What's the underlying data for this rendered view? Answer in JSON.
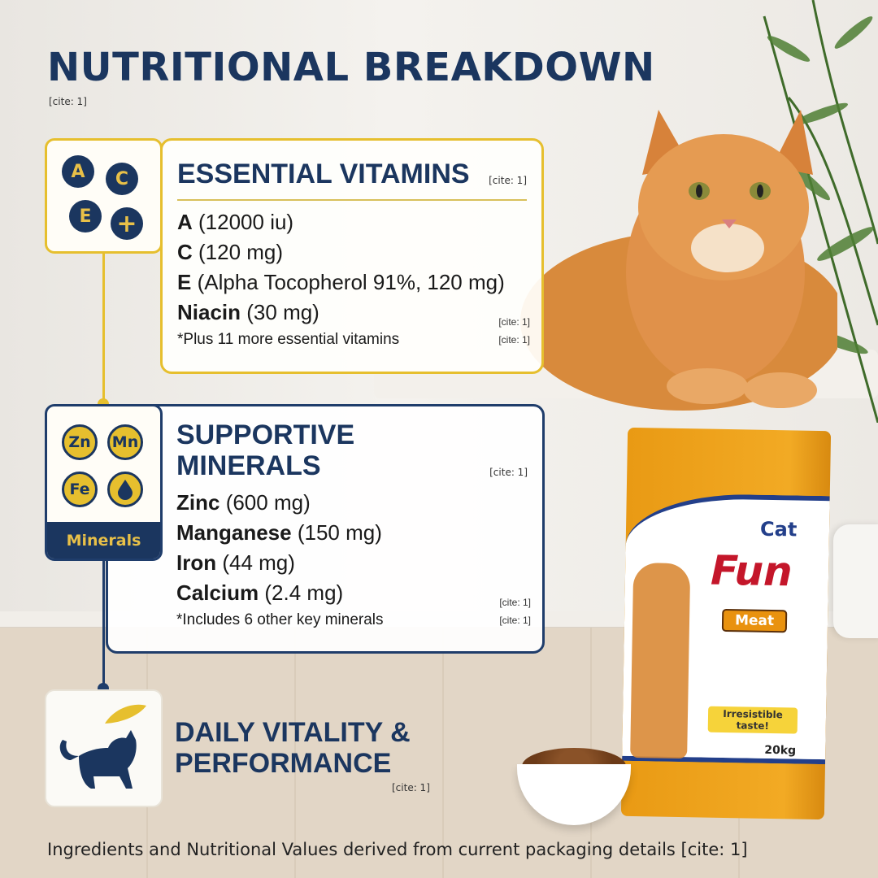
{
  "header": {
    "title": "NUTRITIONAL BREAKDOWN",
    "cite": "[cite: 1]"
  },
  "vitamins": {
    "icon_letters": [
      "A",
      "C",
      "E",
      "+"
    ],
    "title": "ESSENTIAL VITAMINS",
    "title_cite": "[cite: 1]",
    "items": [
      {
        "name": "A",
        "value": "(12000 iu)"
      },
      {
        "name": "C",
        "value": "(120 mg)"
      },
      {
        "name": "E",
        "value": "(Alpha Tocopherol 91%, 120 mg)"
      },
      {
        "name": "Niacin",
        "value": "(30 mg)",
        "cite": "[cite: 1]"
      }
    ],
    "note": "*Plus 11 more essential vitamins",
    "note_cite": "[cite: 1]"
  },
  "minerals": {
    "icon_letters": [
      "Zn",
      "Mn",
      "Fe"
    ],
    "icon_label": "Minerals",
    "title_line1": "SUPPORTIVE",
    "title_line2": "MINERALS",
    "title_cite": "[cite: 1]",
    "items": [
      {
        "name": "Zinc",
        "value": "(600 mg)"
      },
      {
        "name": "Manganese",
        "value": "(150 mg)"
      },
      {
        "name": "Iron",
        "value": "(44 mg)"
      },
      {
        "name": "Calcium",
        "value": "(2.4 mg)",
        "cite": "[cite: 1]"
      }
    ],
    "note": "*Includes 6 other key minerals",
    "note_cite": "[cite: 1]"
  },
  "vitality": {
    "title_line1": "DAILY VITALITY &",
    "title_line2": "PERFORMANCE",
    "cite": "[cite: 1]"
  },
  "product": {
    "brand_small": "Cat",
    "brand": "Fun",
    "variant": "Meat",
    "badge": "Irresistible taste!",
    "weight": "20kg"
  },
  "footer": {
    "text": "Ingredients and Nutritional Values derived from current packaging details [cite: 1]"
  },
  "colors": {
    "navy": "#1b365f",
    "gold": "#e6bf2e",
    "bag_orange": "#f2aa24"
  }
}
